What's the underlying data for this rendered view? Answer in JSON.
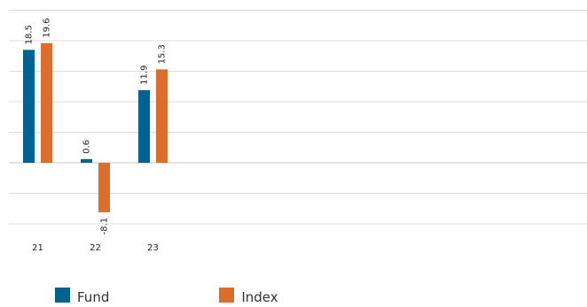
{
  "chart_data": {
    "type": "bar",
    "categories": [
      "21",
      "22",
      "23"
    ],
    "series": [
      {
        "name": "Fund",
        "color": "#00628f",
        "values": [
          18.5,
          0.6,
          11.9
        ]
      },
      {
        "name": "Index",
        "color": "#dd6d2c",
        "values": [
          19.6,
          -8.1,
          15.3
        ]
      }
    ],
    "data_labels": true,
    "ylim": [
      -10,
      25
    ],
    "grid": true,
    "legend_position": "bottom-left"
  }
}
